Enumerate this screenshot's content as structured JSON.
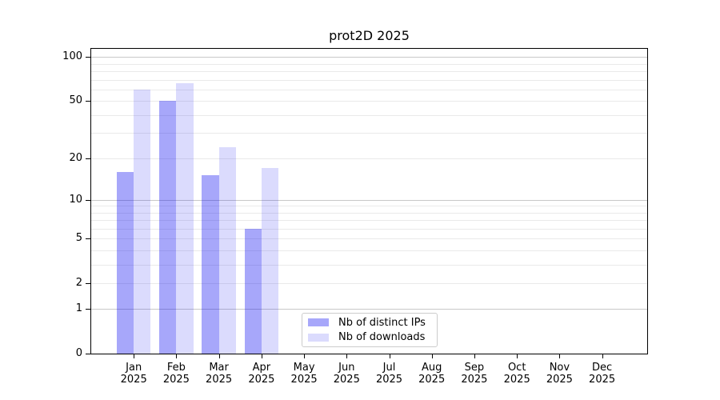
{
  "chart_data": {
    "type": "bar",
    "title": "prot2D 2025",
    "categories": [
      "Jan",
      "Feb",
      "Mar",
      "Apr",
      "May",
      "Jun",
      "Jul",
      "Aug",
      "Sep",
      "Oct",
      "Nov",
      "Dec"
    ],
    "category_year": "2025",
    "series": [
      {
        "name": "Nb of distinct IPs",
        "fill": "rgba(0,0,240,0.345)",
        "fill_hex_on_white": "#a7a7f9",
        "values": [
          16,
          50,
          15,
          6,
          0,
          0,
          0,
          0,
          0,
          0,
          0,
          0
        ]
      },
      {
        "name": "Nb of downloads",
        "fill": "rgba(0,0,240,0.14)",
        "fill_hex_on_white": "#dbdbfc",
        "values": [
          60,
          66,
          24,
          17,
          0,
          0,
          0,
          0,
          0,
          0,
          0,
          0
        ]
      }
    ],
    "y_axis": {
      "scale": "log1p",
      "ylim": [
        0,
        114
      ],
      "ticks": [
        0,
        1,
        2,
        5,
        10,
        20,
        50,
        100
      ],
      "major_gridlines": [
        1,
        10,
        100
      ],
      "minor_gridlines": [
        2,
        3,
        4,
        5,
        6,
        7,
        8,
        9,
        20,
        30,
        40,
        50,
        60,
        70,
        80,
        90
      ]
    },
    "legend_position": "lower center",
    "grid": true,
    "colors": {
      "background": "#ffffff",
      "spine": "#000000",
      "gridline_major": "#c9c9c9",
      "gridline_minor": "#eaeaea",
      "legend_border": "#cccccc",
      "text": "#000000"
    }
  }
}
